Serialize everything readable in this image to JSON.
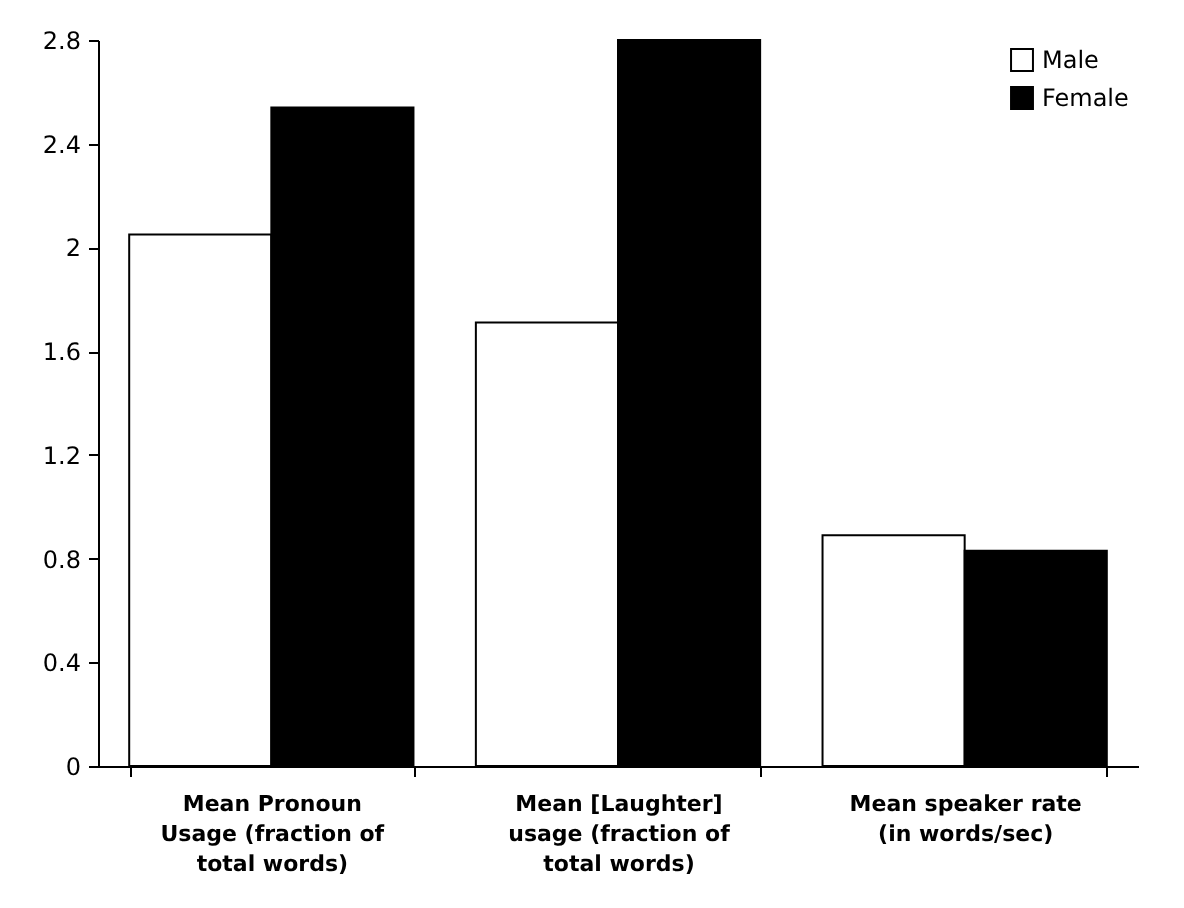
{
  "chart_data": {
    "type": "bar",
    "categories": [
      "Mean Pronoun\nUsage (fraction of\ntotal words)",
      "Mean [Laughter]\nusage (fraction of\ntotal words)",
      "Mean speaker rate\n(in words/sec)"
    ],
    "series": [
      {
        "name": "Male",
        "color": "#ffffff",
        "values": [
          2.05,
          1.71,
          0.89
        ]
      },
      {
        "name": "Female",
        "color": "#000000",
        "values": [
          2.54,
          2.8,
          0.83
        ]
      }
    ],
    "ylim": [
      0,
      2.8
    ],
    "yticks": [
      0,
      0.4,
      0.8,
      1.2,
      1.6,
      2,
      2.4,
      2.8
    ],
    "grid": false,
    "legend": "top right"
  }
}
